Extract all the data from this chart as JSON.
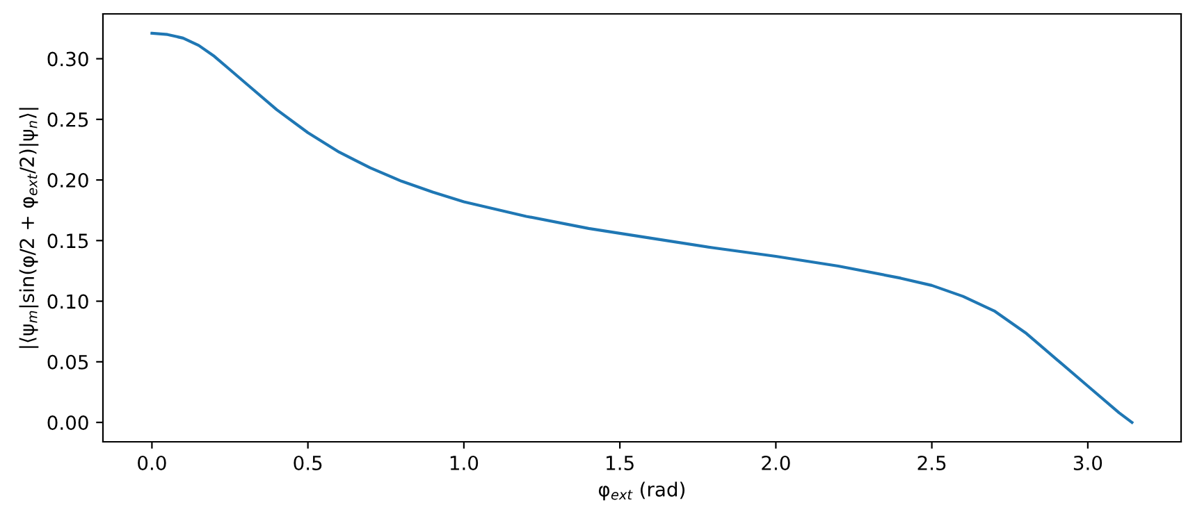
{
  "chart_data": {
    "type": "line",
    "xlabel": "φ$_{ext}$ (rad)",
    "ylabel": "|⟨ψ$_{m}$|sin(φ/2 + φ$_{ext}$/2)|ψ$_{n}$⟩|",
    "x": [
      0,
      0.05,
      0.1,
      0.15,
      0.2,
      0.25,
      0.3,
      0.4,
      0.5,
      0.6,
      0.7,
      0.8,
      0.9,
      1.0,
      1.2,
      1.4,
      1.6,
      1.8,
      2.0,
      2.2,
      2.4,
      2.5,
      2.6,
      2.7,
      2.8,
      2.9,
      3.0,
      3.1,
      3.1416
    ],
    "series": [
      {
        "color": "#1f77b4",
        "values": [
          0.321,
          0.32,
          0.317,
          0.311,
          0.302,
          0.291,
          0.28,
          0.258,
          0.239,
          0.223,
          0.21,
          0.199,
          0.19,
          0.182,
          0.17,
          0.16,
          0.152,
          0.144,
          0.137,
          0.129,
          0.119,
          0.113,
          0.104,
          0.092,
          0.074,
          0.052,
          0.03,
          0.008,
          0.0
        ]
      }
    ],
    "xlim": [
      -0.157,
      3.299
    ],
    "ylim": [
      -0.016,
      0.337
    ],
    "xticks": [
      {
        "value": 0,
        "label": "0.0"
      },
      0.5,
      {
        "value": 1,
        "label": "1.0"
      },
      1.5,
      {
        "value": 2,
        "label": "2.0"
      },
      2.5,
      {
        "value": 3,
        "label": "3.0"
      }
    ],
    "yticks": [
      {
        "value": 0,
        "label": "0.00"
      },
      0.05,
      {
        "value": 0.1,
        "label": "0.10"
      },
      0.15,
      {
        "value": 0.2,
        "label": "0.20"
      },
      0.25,
      {
        "value": 0.3,
        "label": "0.30"
      }
    ],
    "grid": false,
    "legend": false
  }
}
